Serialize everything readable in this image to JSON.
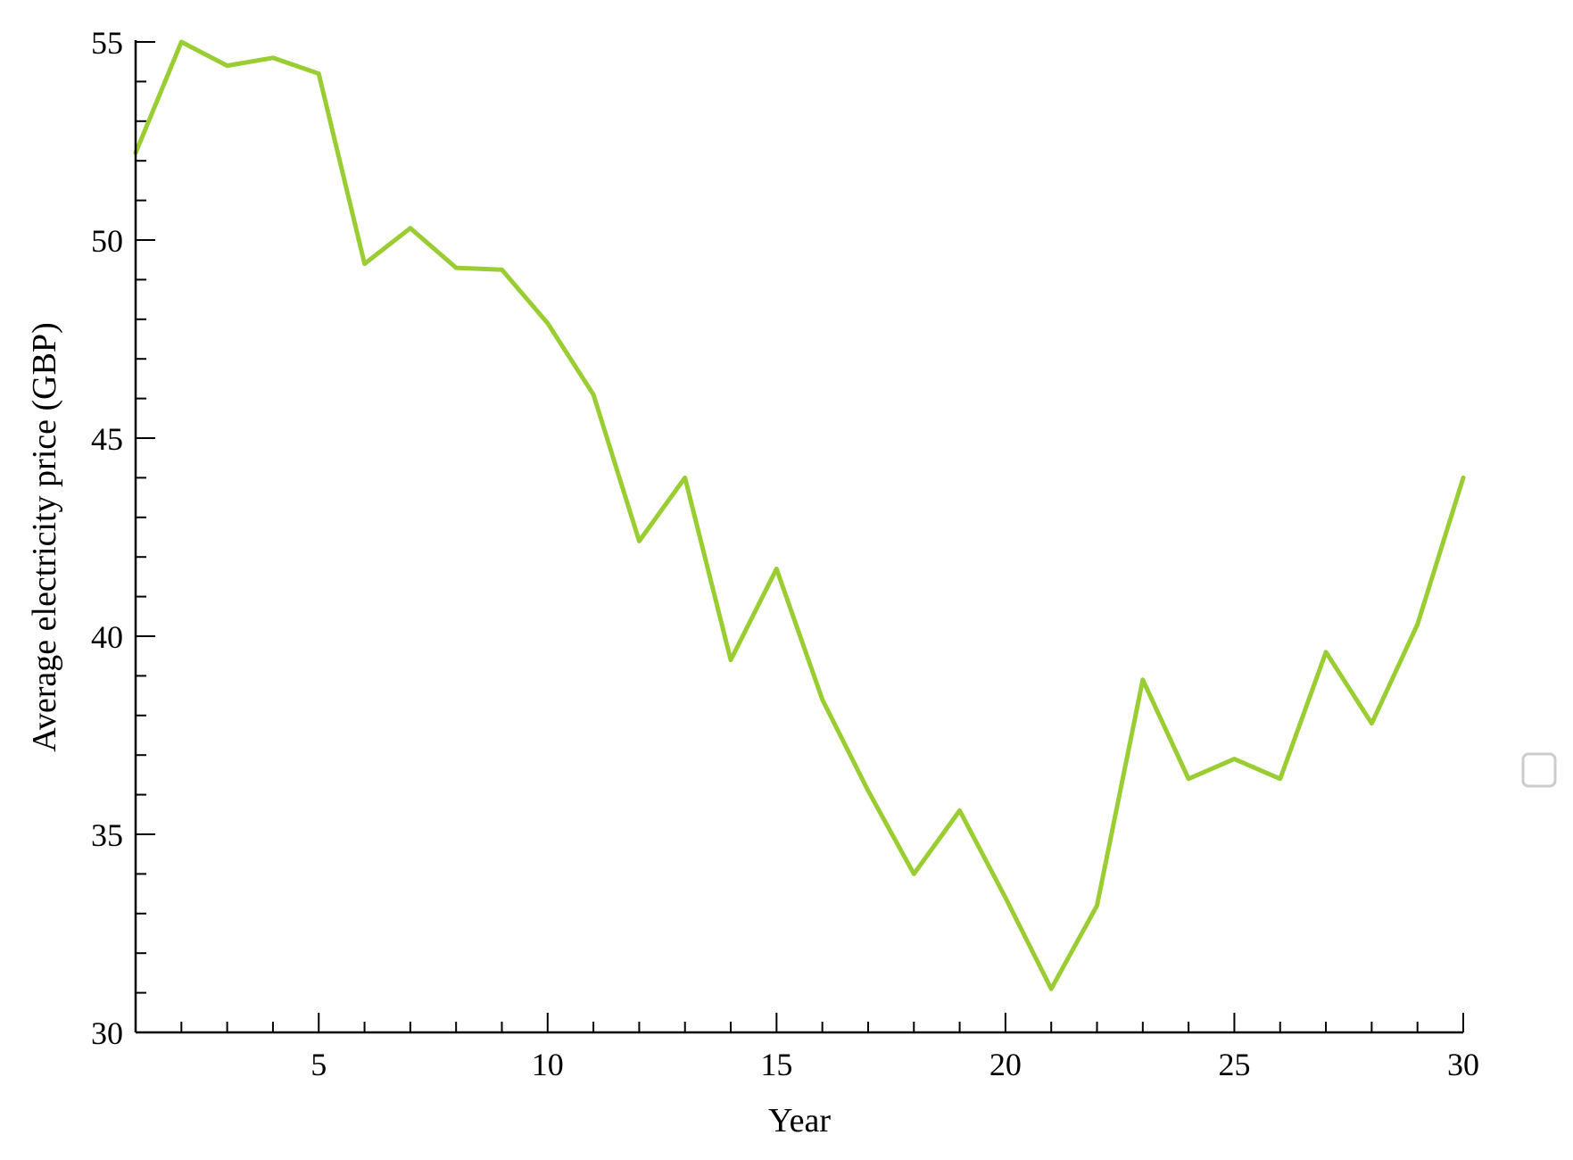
{
  "chart_data": {
    "type": "line",
    "xlabel": "Year",
    "ylabel": "Average electricity price (GBP)",
    "xlim": [
      1,
      30
    ],
    "ylim": [
      30,
      55
    ],
    "x_ticks": [
      5,
      10,
      15,
      20,
      25,
      30
    ],
    "y_ticks": [
      30,
      35,
      40,
      45,
      50,
      55
    ],
    "x_minor_step": 1,
    "y_minor_step": 1,
    "grid": false,
    "legend": "right (empty)",
    "series": [
      {
        "color": "#9acd32",
        "x": [
          1,
          2,
          3,
          4,
          5,
          6,
          7,
          8,
          9,
          10,
          11,
          12,
          13,
          14,
          15,
          16,
          17,
          18,
          19,
          20,
          21,
          22,
          23,
          24,
          25,
          26,
          27,
          28,
          29,
          30
        ],
        "values": [
          52.2,
          55.0,
          54.4,
          54.6,
          54.2,
          49.4,
          50.3,
          49.3,
          49.25,
          47.9,
          46.1,
          42.4,
          44.0,
          39.4,
          41.7,
          38.4,
          36.1,
          34.0,
          35.6,
          33.4,
          31.1,
          33.2,
          38.9,
          36.4,
          36.9,
          36.4,
          39.6,
          37.8,
          40.3,
          44.0
        ]
      }
    ]
  }
}
